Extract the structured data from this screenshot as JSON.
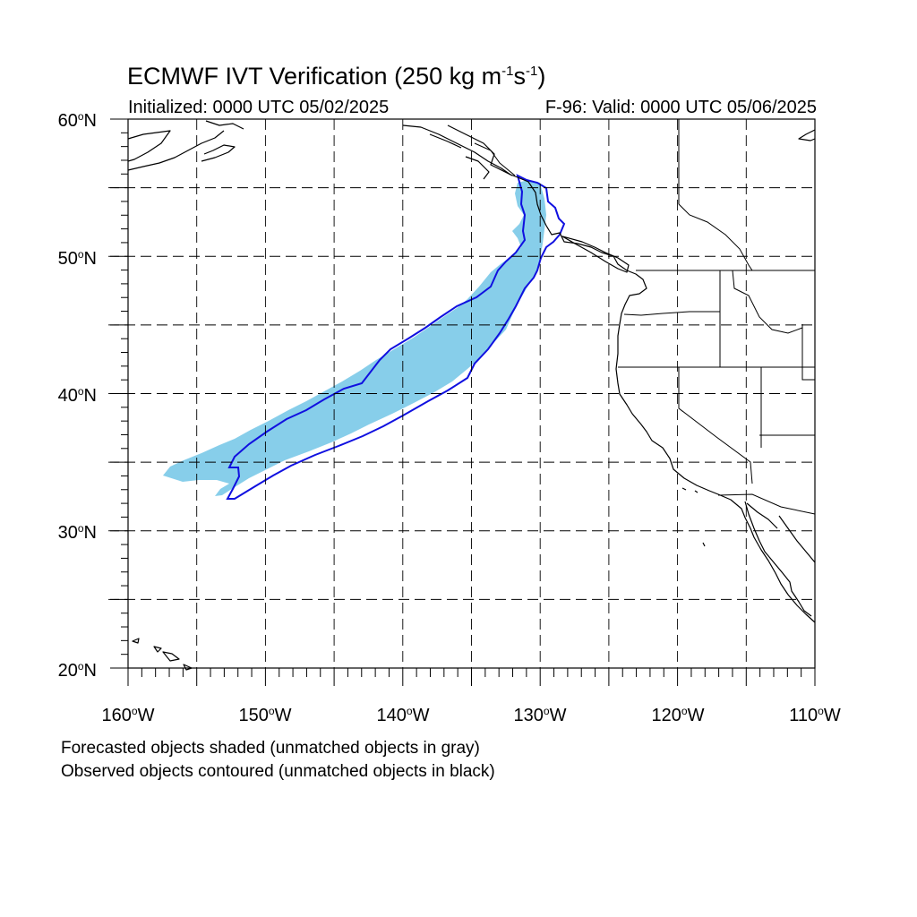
{
  "title": {
    "main": "ECMWF IVT Verification (250 kg m",
    "exp1": "-1",
    "mid": "s",
    "exp2": "-1",
    "end": ")"
  },
  "initialized": "Initialized: 0000 UTC 05/02/2025",
  "valid": "F-96: Valid: 0000 UTC 05/06/2025",
  "lat_labels": [
    "60",
    "50",
    "40",
    "30",
    "20"
  ],
  "lat_suffix": "N",
  "lon_labels": [
    "160",
    "150",
    "140",
    "130",
    "120",
    "110"
  ],
  "lon_suffix": "W",
  "degree_symbol": "o",
  "notes": [
    "Forecasted objects shaded (unmatched objects in gray)",
    "Observed objects contoured (unmatched objects in black)"
  ],
  "map": {
    "projection": "lat-lon",
    "lon_range": [
      -160,
      -110
    ],
    "lat_range": [
      20,
      60
    ],
    "gridlines_every_deg": 5,
    "forecast_fill_color": "#87ceea",
    "observed_contour_color": "#1010e0"
  }
}
